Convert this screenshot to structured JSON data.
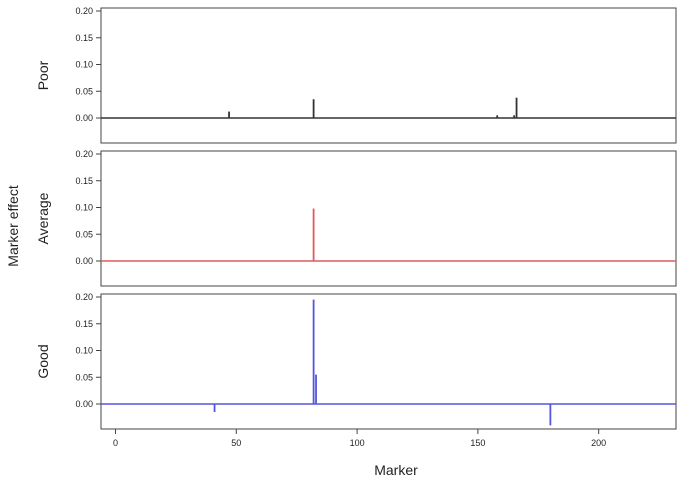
{
  "chart_data": {
    "type": "bar",
    "xlabel": "Marker",
    "ylabel": "Marker effect",
    "xlim": [
      -6,
      232
    ],
    "xticks": [
      0,
      50,
      100,
      150,
      200
    ],
    "yticks": [
      0.0,
      0.05,
      0.1,
      0.15,
      0.2
    ],
    "ylim": [
      -0.04,
      0.2
    ],
    "panels": [
      {
        "label": "Poor",
        "color": "#333333",
        "x": [
          47,
          82,
          158,
          165,
          166
        ],
        "values": [
          0.012,
          0.035,
          0.005,
          0.005,
          0.038
        ]
      },
      {
        "label": "Average",
        "color": "#e05a5a",
        "x": [
          82
        ],
        "values": [
          0.098
        ]
      },
      {
        "label": "Good",
        "color": "#5555dd",
        "x": [
          41,
          82,
          83,
          180
        ],
        "values": [
          -0.015,
          0.195,
          0.055,
          -0.04
        ]
      }
    ]
  }
}
